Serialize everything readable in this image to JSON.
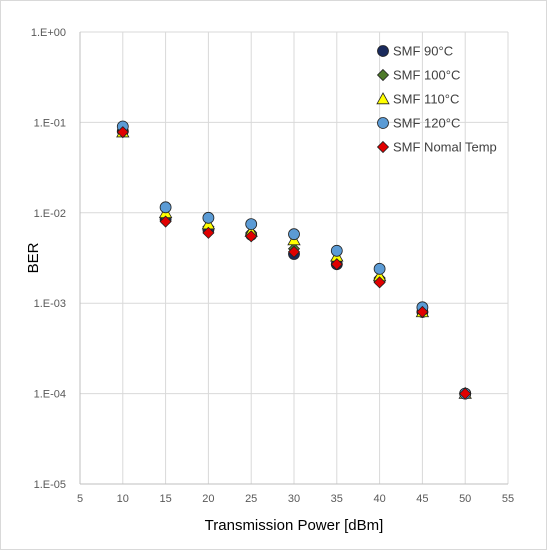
{
  "chart_data": {
    "type": "scatter",
    "xlabel": "Transmission Power [dBm]",
    "ylabel": "BER",
    "xlim": [
      5,
      55
    ],
    "ylim": [
      1e-05,
      1
    ],
    "yscale": "log",
    "grid": true,
    "legend_position": "top-right",
    "x_ticks": [
      "5",
      "10",
      "15",
      "20",
      "25",
      "30",
      "35",
      "40",
      "45",
      "50",
      "55"
    ],
    "y_ticks": [
      "1.E-05",
      "1.E-04",
      "1.E-03",
      "1.E-02",
      "1.E-01",
      "1.E+00"
    ],
    "series": [
      {
        "name": "SMF 90°C",
        "marker": "circle",
        "color": "#1a2a5c",
        "points": [
          [
            10,
            0.08
          ],
          [
            15,
            0.0085
          ],
          [
            20,
            0.0065
          ],
          [
            25,
            0.0057
          ],
          [
            30,
            0.0035
          ],
          [
            35,
            0.0027
          ],
          [
            40,
            0.0018
          ],
          [
            45,
            0.0008
          ],
          [
            50,
            0.0001
          ]
        ]
      },
      {
        "name": "SMF 100°C",
        "marker": "diamond",
        "color": "#4e7a2a",
        "points": [
          [
            10,
            0.08
          ],
          [
            15,
            0.009
          ],
          [
            20,
            0.007
          ],
          [
            25,
            0.006
          ],
          [
            30,
            0.004
          ],
          [
            35,
            0.003
          ],
          [
            40,
            0.0019
          ],
          [
            45,
            0.0008
          ],
          [
            50,
            0.0001
          ]
        ]
      },
      {
        "name": "SMF 110°C",
        "marker": "triangle",
        "color": "#ffff00",
        "points": [
          [
            10,
            0.078
          ],
          [
            15,
            0.01
          ],
          [
            20,
            0.0075
          ],
          [
            25,
            0.0062
          ],
          [
            30,
            0.005
          ],
          [
            35,
            0.0033
          ],
          [
            40,
            0.002
          ],
          [
            45,
            0.0008
          ],
          [
            50,
            0.0001
          ]
        ]
      },
      {
        "name": "SMF 120°C",
        "marker": "circle",
        "color": "#5b9bd5",
        "points": [
          [
            10,
            0.09
          ],
          [
            15,
            0.0115
          ],
          [
            20,
            0.0088
          ],
          [
            25,
            0.0075
          ],
          [
            30,
            0.0058
          ],
          [
            35,
            0.0038
          ],
          [
            40,
            0.0024
          ],
          [
            45,
            0.0009
          ],
          [
            50,
            0.0001
          ]
        ]
      },
      {
        "name": "SMF Nomal Temp",
        "marker": "diamond",
        "color": "#e00000",
        "points": [
          [
            10,
            0.078
          ],
          [
            15,
            0.008
          ],
          [
            20,
            0.006
          ],
          [
            25,
            0.0055
          ],
          [
            30,
            0.0037
          ],
          [
            35,
            0.0027
          ],
          [
            40,
            0.0017
          ],
          [
            45,
            0.0008
          ],
          [
            50,
            0.0001
          ]
        ]
      }
    ]
  }
}
